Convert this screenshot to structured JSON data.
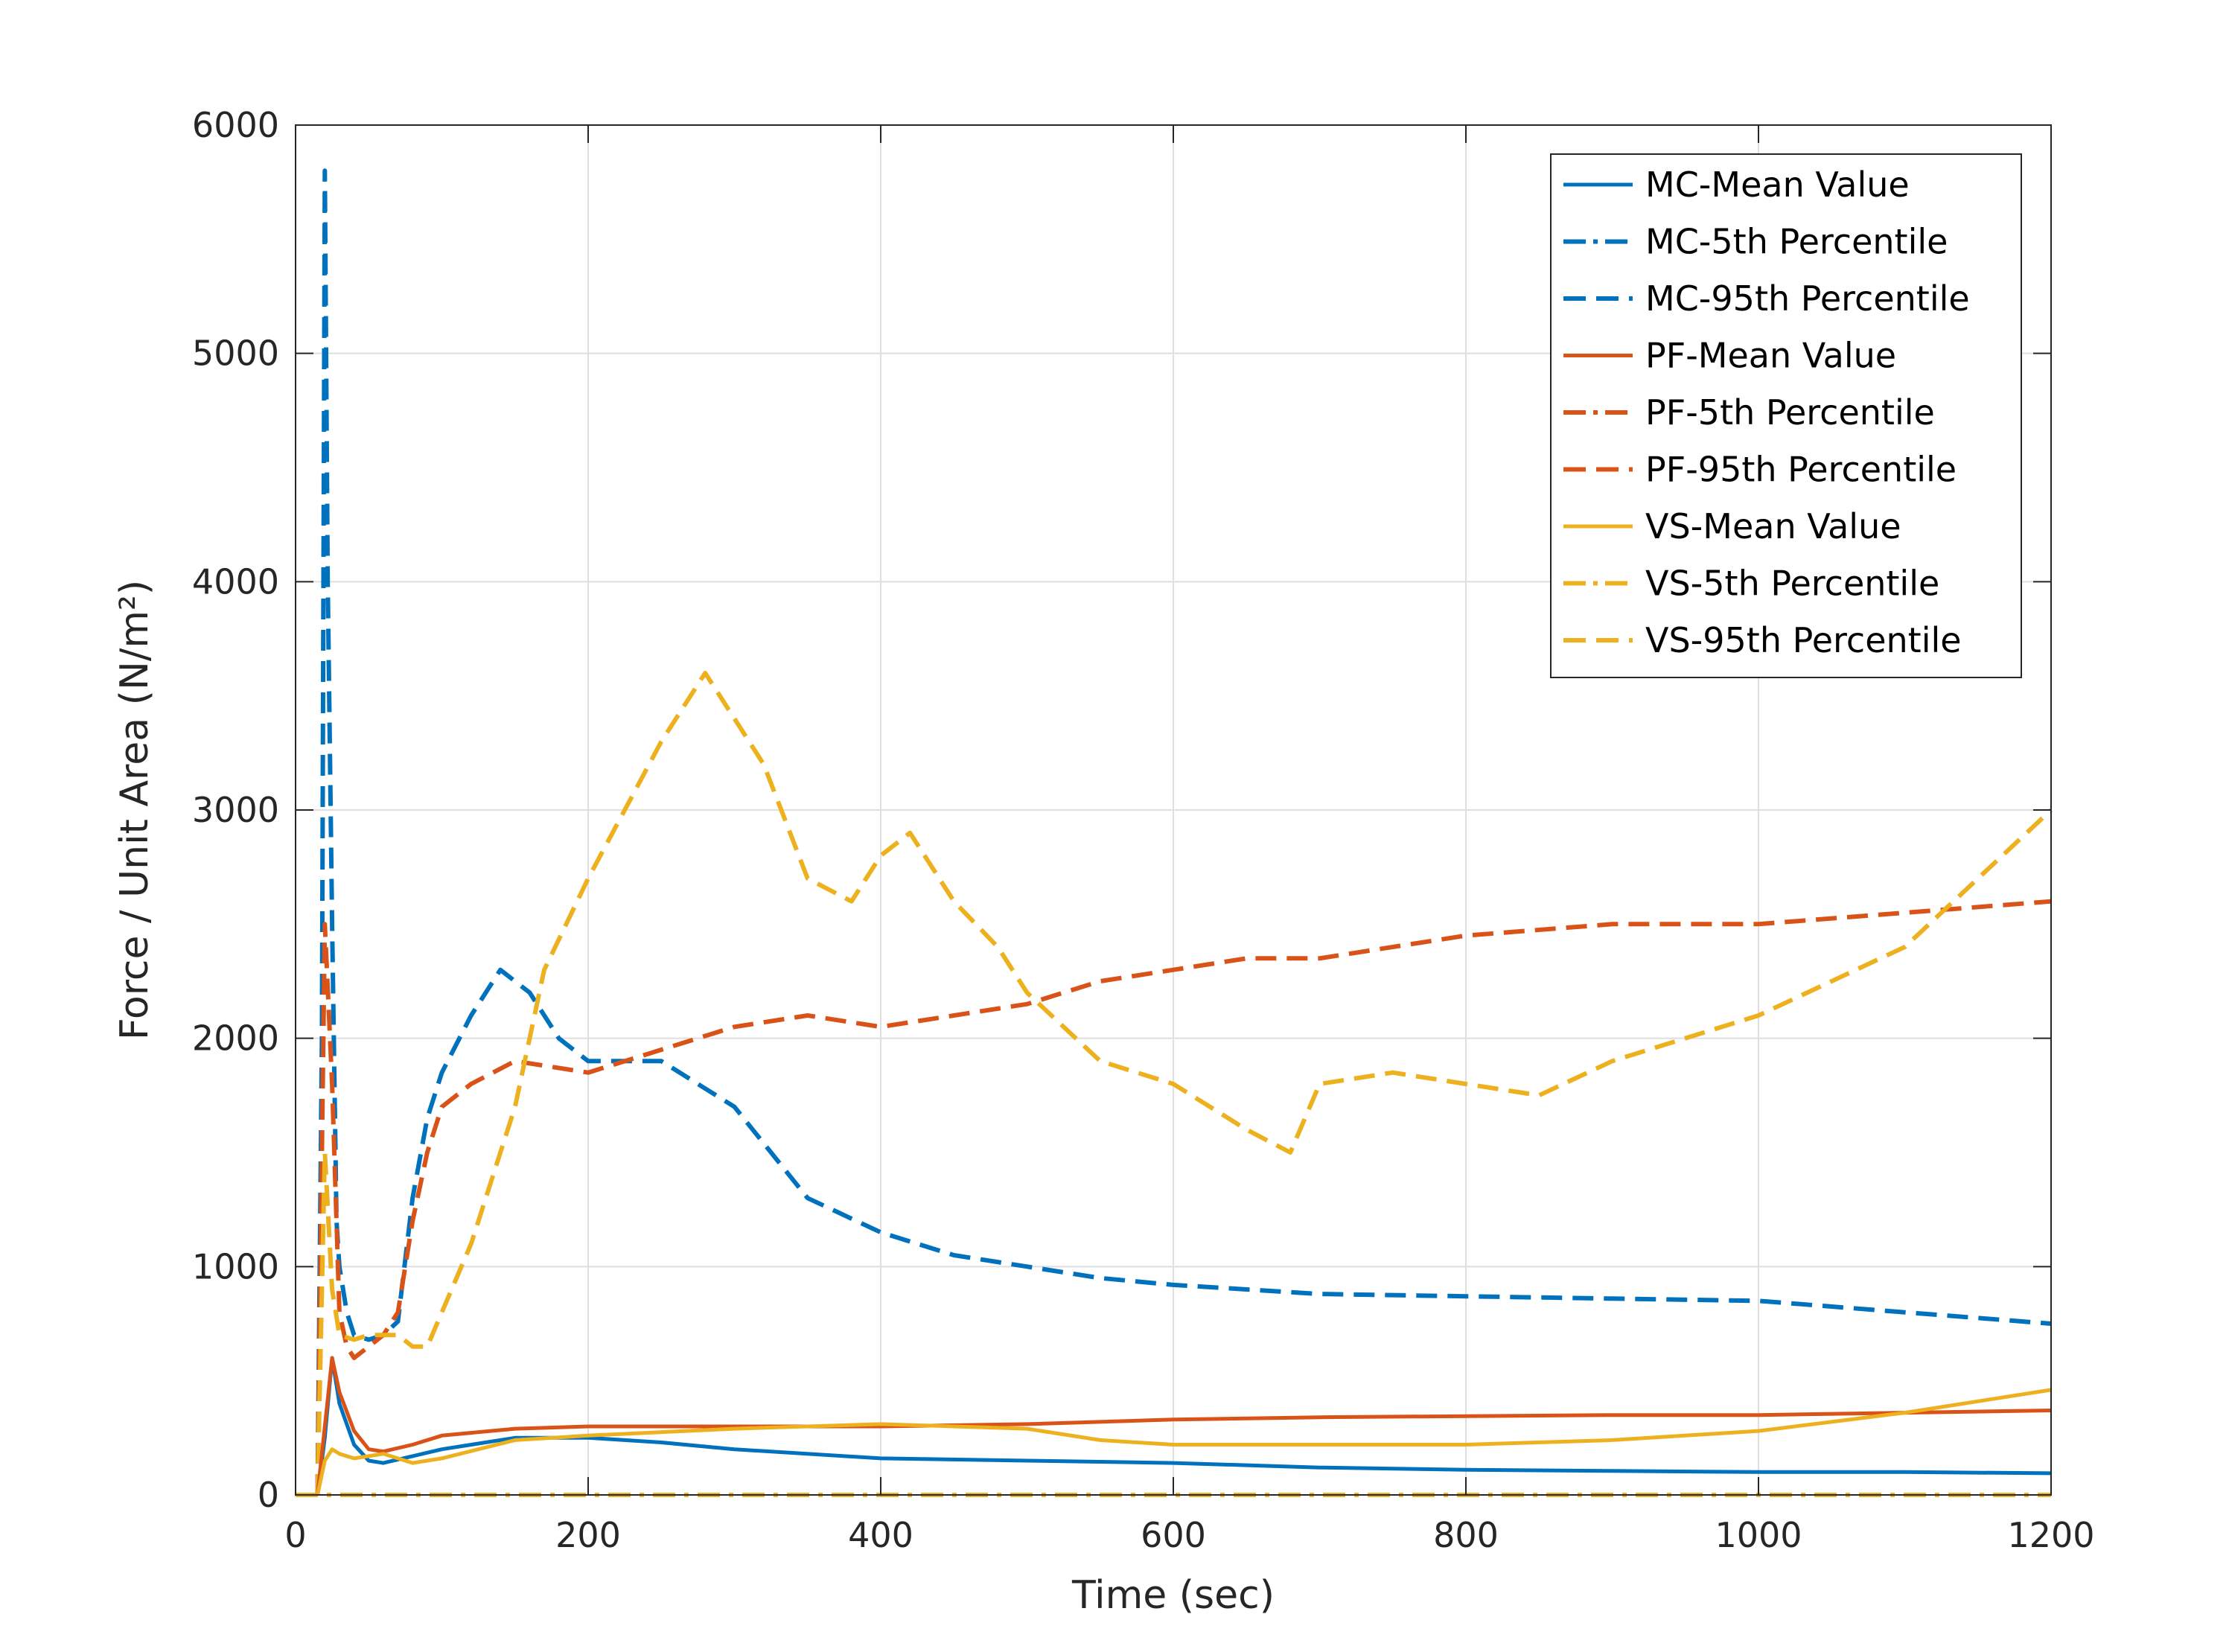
{
  "colors": {
    "MC": "#0072BD",
    "PF": "#D95319",
    "VS": "#EDB120",
    "grid": "#dfdfdf",
    "axis": "#262626"
  },
  "chart_data": {
    "type": "line",
    "xlabel": "Time (sec)",
    "ylabel": "Force / Unit Area (N/m²)",
    "xlim": [
      0,
      1200
    ],
    "ylim": [
      0,
      6000
    ],
    "xticks": [
      "0",
      "200",
      "400",
      "600",
      "800",
      "1000",
      "1200"
    ],
    "yticks": [
      "0",
      "1000",
      "2000",
      "3000",
      "4000",
      "5000",
      "6000"
    ],
    "grid": true,
    "legend_position": "top-right",
    "series": [
      {
        "name": "MC-Mean Value",
        "group": "MC",
        "style": "solid",
        "x": [
          15,
          20,
          25,
          30,
          40,
          50,
          60,
          80,
          100,
          150,
          200,
          250,
          300,
          400,
          500,
          600,
          700,
          800,
          900,
          1000,
          1100,
          1200
        ],
        "values": [
          0,
          250,
          600,
          400,
          220,
          150,
          140,
          170,
          200,
          250,
          250,
          230,
          200,
          160,
          150,
          140,
          120,
          110,
          105,
          100,
          100,
          95
        ]
      },
      {
        "name": "MC-5th Percentile",
        "group": "MC",
        "style": "dashdot",
        "x": [
          0,
          1200
        ],
        "values": [
          0,
          0
        ]
      },
      {
        "name": "MC-95th Percentile",
        "group": "MC",
        "style": "dashed",
        "x": [
          15,
          18,
          20,
          22,
          25,
          28,
          30,
          35,
          40,
          50,
          60,
          70,
          80,
          90,
          100,
          120,
          140,
          160,
          180,
          200,
          250,
          300,
          350,
          400,
          450,
          500,
          550,
          600,
          650,
          700,
          800,
          900,
          1000,
          1100,
          1200
        ],
        "values": [
          0,
          2000,
          5800,
          4000,
          2500,
          1200,
          1000,
          800,
          700,
          680,
          700,
          760,
          1300,
          1650,
          1850,
          2100,
          2300,
          2200,
          2000,
          1900,
          1900,
          1700,
          1300,
          1150,
          1050,
          1000,
          950,
          920,
          900,
          880,
          870,
          860,
          850,
          800,
          750
        ]
      },
      {
        "name": "PF-Mean Value",
        "group": "PF",
        "style": "solid",
        "x": [
          15,
          20,
          25,
          30,
          40,
          50,
          60,
          80,
          100,
          150,
          200,
          300,
          400,
          500,
          600,
          700,
          800,
          900,
          1000,
          1100,
          1200
        ],
        "values": [
          0,
          300,
          600,
          450,
          280,
          200,
          190,
          220,
          260,
          290,
          300,
          300,
          300,
          310,
          330,
          340,
          345,
          350,
          350,
          360,
          370
        ]
      },
      {
        "name": "PF-5th Percentile",
        "group": "PF",
        "style": "dashdot",
        "x": [
          0,
          1200
        ],
        "values": [
          0,
          0
        ]
      },
      {
        "name": "PF-95th Percentile",
        "group": "PF",
        "style": "dashed",
        "x": [
          15,
          20,
          25,
          30,
          35,
          40,
          50,
          60,
          70,
          80,
          90,
          100,
          120,
          150,
          200,
          250,
          300,
          350,
          400,
          450,
          500,
          550,
          600,
          650,
          700,
          800,
          900,
          1000,
          1100,
          1200
        ],
        "values": [
          0,
          2500,
          1800,
          800,
          650,
          600,
          650,
          700,
          800,
          1200,
          1500,
          1700,
          1800,
          1900,
          1850,
          1950,
          2050,
          2100,
          2050,
          2100,
          2150,
          2250,
          2300,
          2350,
          2350,
          2450,
          2500,
          2500,
          2550,
          2600
        ]
      },
      {
        "name": "VS-Mean Value",
        "group": "VS",
        "style": "solid",
        "x": [
          15,
          20,
          25,
          30,
          40,
          50,
          60,
          80,
          100,
          150,
          200,
          300,
          400,
          500,
          550,
          600,
          700,
          800,
          900,
          1000,
          1100,
          1200
        ],
        "values": [
          0,
          150,
          200,
          180,
          160,
          170,
          180,
          140,
          160,
          240,
          260,
          290,
          310,
          290,
          240,
          220,
          220,
          220,
          240,
          280,
          360,
          460
        ]
      },
      {
        "name": "VS-5th Percentile",
        "group": "VS",
        "style": "dashdot",
        "x": [
          0,
          1200
        ],
        "values": [
          0,
          0
        ]
      },
      {
        "name": "VS-95th Percentile",
        "group": "VS",
        "style": "dashed",
        "x": [
          15,
          20,
          25,
          30,
          40,
          50,
          60,
          70,
          80,
          90,
          100,
          120,
          150,
          170,
          200,
          250,
          280,
          300,
          320,
          350,
          380,
          400,
          420,
          450,
          480,
          500,
          550,
          600,
          650,
          680,
          700,
          750,
          800,
          850,
          900,
          1000,
          1100,
          1150,
          1200
        ],
        "values": [
          0,
          1500,
          900,
          700,
          680,
          700,
          700,
          700,
          650,
          650,
          800,
          1100,
          1700,
          2300,
          2700,
          3300,
          3600,
          3400,
          3200,
          2700,
          2600,
          2800,
          2900,
          2600,
          2400,
          2200,
          1900,
          1800,
          1600,
          1500,
          1800,
          1850,
          1800,
          1750,
          1900,
          2100,
          2400,
          2700,
          3000
        ]
      }
    ]
  }
}
